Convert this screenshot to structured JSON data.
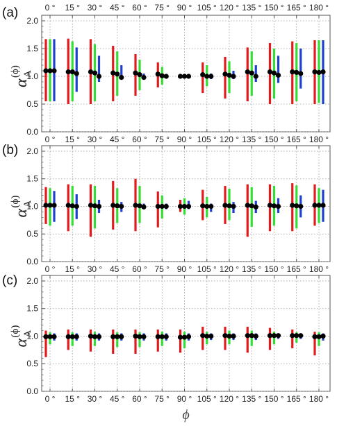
{
  "chart_data": [
    {
      "type": "scatter",
      "panel_label": "(a)",
      "ylabel": "α",
      "ylabel_superscript": "(ϕ)",
      "ylabel_subscript": "A",
      "xlabel": "",
      "ylim": [
        0.0,
        2.1
      ],
      "y_ticks": [
        "0.0",
        "0.5",
        "1.0",
        "1.5",
        "2.0"
      ],
      "x": [
        0,
        15,
        30,
        45,
        60,
        75,
        90,
        105,
        120,
        135,
        150,
        165,
        180
      ],
      "x_tick_labels": [
        "0 °",
        "15 °",
        "30 °",
        "45 °",
        "60 °",
        "75 °",
        "90 °",
        "105 °",
        "120 °",
        "135 °",
        "150 °",
        "165 °",
        "180 °"
      ],
      "top_x_tick_labels": [
        "0 °",
        "15 °",
        "30 °",
        "45 °",
        "60 °",
        "75 °",
        "90 °",
        "105 °",
        "120 °",
        "135 °",
        "150 °",
        "165 °",
        "180 °"
      ],
      "grid": true,
      "series": [
        {
          "color": "#e31a1c",
          "points": [
            1.1,
            1.08,
            1.08,
            1.06,
            1.06,
            1.04,
            1.0,
            1.03,
            1.04,
            1.08,
            1.08,
            1.08,
            1.08
          ],
          "low": [
            0.55,
            0.5,
            0.5,
            0.55,
            0.65,
            0.8,
            1.0,
            0.7,
            0.6,
            0.55,
            0.5,
            0.5,
            0.5
          ],
          "high": [
            1.67,
            1.68,
            1.67,
            1.55,
            1.4,
            1.25,
            1.0,
            1.25,
            1.35,
            1.52,
            1.6,
            1.63,
            1.65
          ]
        },
        {
          "color": "#33dd33",
          "points": [
            1.1,
            1.08,
            1.06,
            1.04,
            1.03,
            1.01,
            1.0,
            1.0,
            1.02,
            1.06,
            1.06,
            1.07,
            1.07
          ],
          "low": [
            0.55,
            0.55,
            0.55,
            0.65,
            0.75,
            0.85,
            1.0,
            0.82,
            0.7,
            0.65,
            0.6,
            0.55,
            0.52
          ],
          "high": [
            1.67,
            1.63,
            1.58,
            1.45,
            1.3,
            1.17,
            1.0,
            1.2,
            1.27,
            1.45,
            1.5,
            1.6,
            1.65
          ]
        },
        {
          "color": "#1f3fcf",
          "points": [
            1.1,
            1.05,
            1.0,
            0.98,
            0.98,
            1.0,
            1.0,
            1.0,
            1.0,
            1.0,
            1.02,
            1.05,
            1.08
          ],
          "low": [
            0.55,
            0.72,
            0.9,
            0.95,
            0.95,
            1.0,
            1.0,
            0.95,
            0.95,
            0.9,
            0.88,
            0.78,
            0.5
          ],
          "high": [
            1.67,
            1.52,
            1.37,
            1.2,
            1.05,
            1.0,
            1.0,
            1.05,
            1.1,
            1.2,
            1.37,
            1.5,
            1.65
          ]
        }
      ]
    },
    {
      "type": "scatter",
      "panel_label": "(b)",
      "ylabel": "α",
      "ylabel_superscript": "(ϕ)",
      "ylabel_subscript": "A",
      "xlabel": "",
      "ylim": [
        0.0,
        2.1
      ],
      "y_ticks": [
        "0.0",
        "0.5",
        "1.0",
        "1.5",
        "2.0"
      ],
      "x": [
        0,
        15,
        30,
        45,
        60,
        75,
        90,
        105,
        120,
        135,
        150,
        165,
        180
      ],
      "x_tick_labels": [
        "0 °",
        "15 °",
        "30 °",
        "45 °",
        "60 °",
        "75 °",
        "90 °",
        "105 °",
        "120 °",
        "135 °",
        "150 °",
        "165 °",
        "180 °"
      ],
      "grid": true,
      "series": [
        {
          "color": "#e31a1c",
          "points": [
            1.02,
            1.02,
            1.02,
            1.02,
            1.02,
            1.0,
            1.0,
            1.01,
            1.02,
            1.02,
            1.02,
            1.02,
            1.02
          ],
          "low": [
            0.68,
            0.55,
            0.45,
            0.58,
            0.55,
            0.62,
            0.9,
            0.75,
            0.68,
            0.45,
            0.55,
            0.55,
            0.65
          ],
          "high": [
            1.35,
            1.4,
            1.4,
            1.46,
            1.5,
            1.27,
            1.12,
            1.3,
            1.37,
            1.4,
            1.4,
            1.42,
            1.4
          ]
        },
        {
          "color": "#33dd33",
          "points": [
            1.02,
            1.01,
            1.01,
            1.01,
            1.01,
            1.0,
            1.0,
            1.0,
            1.01,
            1.01,
            1.01,
            1.01,
            1.02
          ],
          "low": [
            0.65,
            0.65,
            0.6,
            0.7,
            0.7,
            0.78,
            0.85,
            0.8,
            0.75,
            0.63,
            0.65,
            0.6,
            0.7
          ],
          "high": [
            1.33,
            1.37,
            1.37,
            1.33,
            1.37,
            1.2,
            1.15,
            1.17,
            1.32,
            1.35,
            1.37,
            1.38,
            1.33
          ]
        },
        {
          "color": "#1f3fcf",
          "points": [
            1.02,
            1.0,
            1.0,
            1.0,
            0.99,
            1.0,
            1.0,
            1.0,
            1.0,
            0.99,
            1.0,
            1.0,
            1.02
          ],
          "low": [
            0.72,
            0.77,
            0.88,
            0.9,
            0.95,
            0.95,
            0.95,
            0.9,
            0.88,
            0.88,
            0.88,
            0.8,
            0.72
          ],
          "high": [
            1.28,
            1.22,
            1.12,
            1.08,
            1.05,
            1.05,
            1.1,
            1.05,
            1.08,
            1.1,
            1.15,
            1.2,
            1.3
          ]
        }
      ]
    },
    {
      "type": "scatter",
      "panel_label": "(c)",
      "ylabel": "α",
      "ylabel_superscript": "(ϕ)",
      "ylabel_subscript": "A",
      "xlabel": "ϕ",
      "ylim": [
        0.0,
        2.1
      ],
      "y_ticks": [
        "0.0",
        "0.5",
        "1.0",
        "1.5",
        "2.0"
      ],
      "x": [
        0,
        15,
        30,
        45,
        60,
        75,
        90,
        105,
        120,
        135,
        150,
        165,
        180
      ],
      "x_tick_labels": [
        "0 °",
        "15 °",
        "30 °",
        "45 °",
        "60 °",
        "75 °",
        "90 °",
        "105 °",
        "120 °",
        "135 °",
        "150 °",
        "165 °",
        "180 °"
      ],
      "grid": true,
      "series": [
        {
          "color": "#e31a1c",
          "points": [
            0.99,
            0.99,
            1.0,
            0.99,
            1.0,
            0.99,
            0.98,
            1.01,
            1.01,
            1.01,
            1.01,
            1.01,
            0.99
          ],
          "low": [
            0.62,
            0.75,
            0.72,
            0.68,
            0.68,
            0.72,
            0.7,
            0.75,
            0.75,
            0.7,
            0.75,
            0.78,
            0.65
          ],
          "high": [
            1.1,
            1.12,
            1.12,
            1.12,
            1.12,
            1.12,
            1.12,
            1.17,
            1.17,
            1.17,
            1.15,
            1.12,
            1.08
          ]
        },
        {
          "color": "#33dd33",
          "points": [
            0.99,
            0.99,
            0.99,
            0.99,
            0.99,
            0.99,
            0.98,
            1.0,
            1.0,
            1.01,
            1.01,
            1.01,
            0.99
          ],
          "low": [
            0.85,
            0.82,
            0.82,
            0.8,
            0.8,
            0.82,
            0.78,
            0.85,
            0.85,
            0.82,
            0.85,
            0.88,
            0.82
          ],
          "high": [
            1.07,
            1.07,
            1.08,
            1.07,
            1.07,
            1.08,
            1.08,
            1.08,
            1.1,
            1.1,
            1.08,
            1.07,
            1.07
          ]
        },
        {
          "color": "#1f3fcf",
          "points": [
            0.99,
            0.99,
            0.99,
            0.99,
            0.99,
            0.99,
            0.99,
            1.0,
            1.0,
            1.0,
            1.01,
            1.01,
            1.0
          ],
          "low": [
            0.92,
            0.92,
            0.92,
            0.92,
            0.92,
            0.92,
            0.92,
            0.93,
            0.93,
            0.93,
            0.95,
            0.95,
            0.92
          ],
          "high": [
            1.05,
            1.05,
            1.05,
            1.05,
            1.05,
            1.05,
            1.05,
            1.05,
            1.05,
            1.05,
            1.05,
            1.05,
            1.05
          ]
        }
      ]
    }
  ]
}
